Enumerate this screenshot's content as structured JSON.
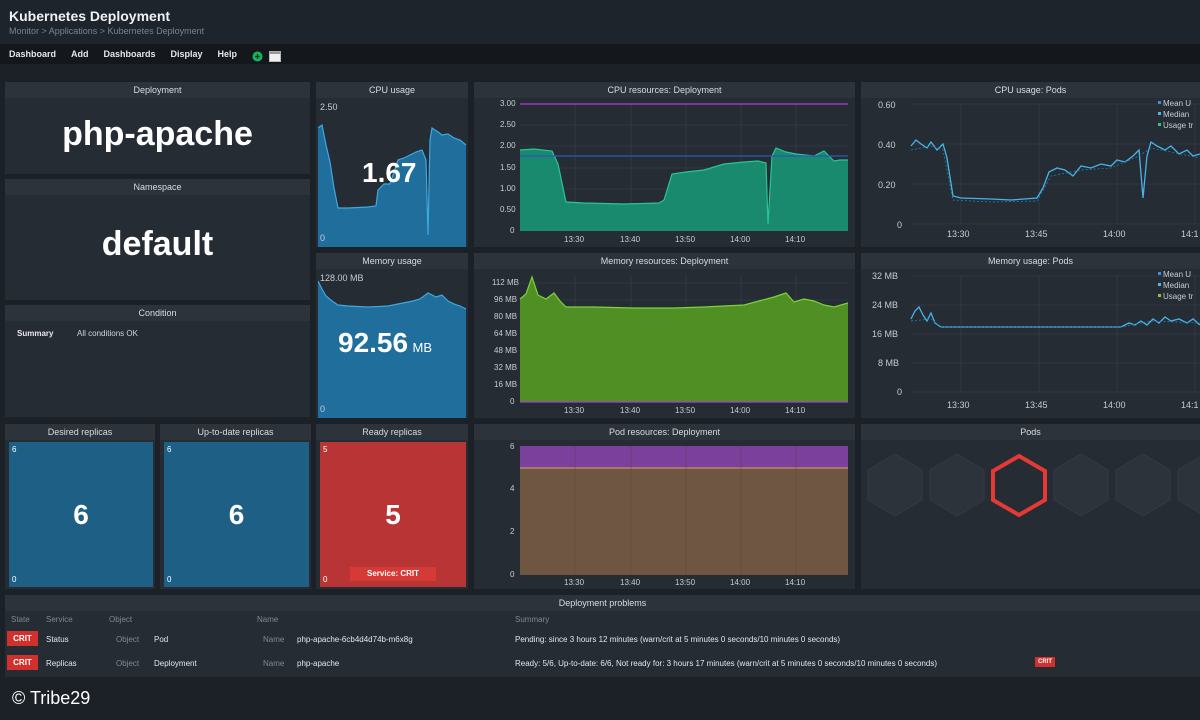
{
  "header": {
    "title": "Kubernetes Deployment",
    "breadcrumb": "Monitor > Applications > Kubernetes Deployment"
  },
  "menu": {
    "items": [
      "Dashboard",
      "Add",
      "Dashboards",
      "Display",
      "Help"
    ],
    "icons": [
      "status-green-icon",
      "display-window-icon"
    ]
  },
  "deployment": {
    "title": "Deployment",
    "value": "php-apache"
  },
  "namespace": {
    "title": "Namespace",
    "value": "default"
  },
  "condition": {
    "title": "Condition",
    "label": "Summary",
    "value": "All conditions OK"
  },
  "cpu_usage": {
    "title": "CPU usage",
    "max": "2.50",
    "min": "0",
    "value": "1.67",
    "color": "#1f6e9c"
  },
  "memory_usage": {
    "title": "Memory usage",
    "max": "128.00 MB",
    "min": "0",
    "value": "92.56",
    "unit": "MB",
    "color": "#1f6e9c"
  },
  "replicas": {
    "desired": {
      "title": "Desired replicas",
      "value": "6",
      "max": "6",
      "min": "0",
      "color": "#1e5f86"
    },
    "uptodate": {
      "title": "Up-to-date replicas",
      "value": "6",
      "max": "6",
      "min": "0",
      "color": "#1e5f86"
    },
    "ready": {
      "title": "Ready replicas",
      "value": "5",
      "max": "5",
      "min": "0",
      "badge": "Service: CRIT",
      "color": "#b93535"
    }
  },
  "cpu_resources": {
    "title": "CPU resources: Deployment",
    "yticks": [
      "3.00",
      "2.50",
      "2.00",
      "1.50",
      "1.00",
      "0.50",
      "0"
    ],
    "xticks": [
      "13:30",
      "13:40",
      "13:50",
      "14:00",
      "14:10"
    ]
  },
  "memory_resources": {
    "title": "Memory resources: Deployment",
    "yticks": [
      "112 MB",
      "96 MB",
      "80 MB",
      "64 MB",
      "48 MB",
      "32 MB",
      "16 MB",
      "0"
    ],
    "xticks": [
      "13:30",
      "13:40",
      "13:50",
      "14:00",
      "14:10"
    ]
  },
  "pod_resources": {
    "title": "Pod resources: Deployment",
    "yticks": [
      "6",
      "4",
      "2",
      "0"
    ],
    "xticks": [
      "13:30",
      "13:40",
      "13:50",
      "14:00",
      "14:10"
    ]
  },
  "cpu_pods": {
    "title": "CPU usage: Pods",
    "yticks": [
      "0.60",
      "0.40",
      "0.20",
      "0"
    ],
    "xticks": [
      "13:30",
      "13:45",
      "14:00",
      "14:1"
    ],
    "legend": [
      "Mean U",
      "Median",
      "Usage tr"
    ]
  },
  "memory_pods": {
    "title": "Memory usage: Pods",
    "yticks": [
      "32 MB",
      "24 MB",
      "16 MB",
      "8 MB",
      "0"
    ],
    "xticks": [
      "13:30",
      "13:45",
      "14:00",
      "14:1"
    ],
    "legend": [
      "Mean U",
      "Median",
      "Usage tr"
    ]
  },
  "pods": {
    "title": "Pods"
  },
  "problems": {
    "title": "Deployment problems",
    "headers": [
      "State",
      "Service",
      "Object",
      "Name",
      "Summary"
    ],
    "rows": [
      {
        "state": "CRIT",
        "service": "Status",
        "object_label": "Object",
        "object": "Pod",
        "name_label": "Name",
        "name": "php-apache-6cb4d4d74b-m6x8g",
        "summary": "Pending: since 3 hours 12 minutes (warn/crit at 5 minutes 0 seconds/10 minutes 0 seconds)"
      },
      {
        "state": "CRIT",
        "service": "Replicas",
        "object_label": "Object",
        "object": "Deployment",
        "name_label": "Name",
        "name": "php-apache",
        "summary": "Ready: 5/6, Up-to-date: 6/6, Not ready for: 3 hours 17 minutes (warn/crit at 5 minutes 0 seconds/10 minutes 0 seconds)",
        "badge": "CRIT"
      }
    ]
  },
  "footer": {
    "copyright": "© Tribe29"
  }
}
